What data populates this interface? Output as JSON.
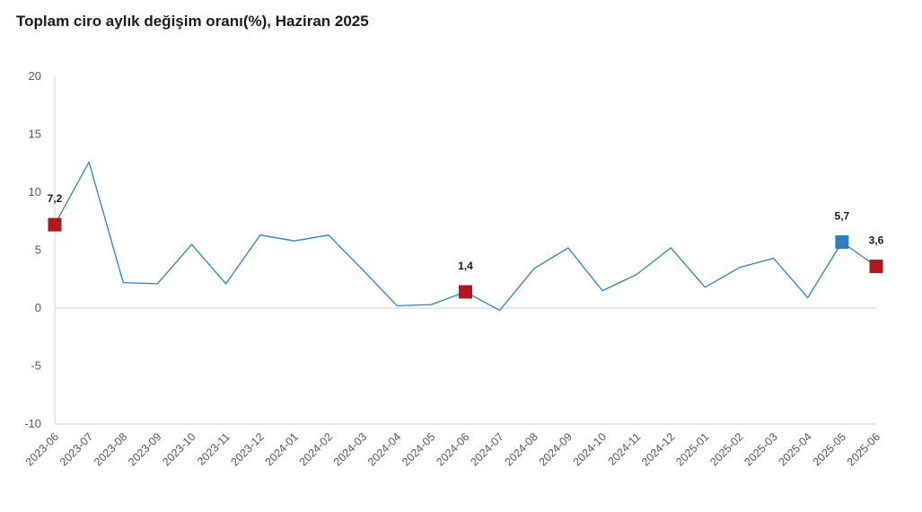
{
  "colors": {
    "line": "#2e7fc0",
    "marker_red": "#b0171f",
    "marker_blue": "#2e7fc0",
    "zero_line": "#d0d0d0",
    "axis": "#cfcfcf"
  },
  "chart_data": {
    "type": "line",
    "title": "Toplam ciro aylık değişim oranı(%), Haziran 2025",
    "xlabel": "",
    "ylabel": "",
    "ylim": [
      -10,
      20
    ],
    "yticks": [
      20,
      15,
      10,
      5,
      0,
      -5,
      -10
    ],
    "ytick_labels": [
      "20",
      "15",
      "10",
      "5",
      "0",
      "-5",
      "-10"
    ],
    "grid": false,
    "categories": [
      "2023-06",
      "2023-07",
      "2023-08",
      "2023-09",
      "2023-10",
      "2023-11",
      "2023-12",
      "2024-01",
      "2024-02",
      "2024-03",
      "2024-04",
      "2024-05",
      "2024-06",
      "2024-07",
      "2024-08",
      "2024-09",
      "2024-10",
      "2024-11",
      "2024-12",
      "2025-01",
      "2025-02",
      "2025-03",
      "2025-04",
      "2025-05",
      "2025-06"
    ],
    "series": [
      {
        "values": [
          7.2,
          12.6,
          2.2,
          2.1,
          5.5,
          2.1,
          6.3,
          5.8,
          6.3,
          3.3,
          0.2,
          0.3,
          1.4,
          -0.2,
          3.4,
          5.2,
          1.5,
          2.9,
          5.2,
          1.8,
          3.5,
          4.3,
          0.9,
          5.7,
          3.6
        ]
      }
    ],
    "highlighted_points": [
      {
        "category": "2023-06",
        "value": 7.2,
        "label": "7,2",
        "color": "red"
      },
      {
        "category": "2024-06",
        "value": 1.4,
        "label": "1,4",
        "color": "red"
      },
      {
        "category": "2025-05",
        "value": 5.7,
        "label": "5,7",
        "color": "blue"
      },
      {
        "category": "2025-06",
        "value": 3.6,
        "label": "3,6",
        "color": "red"
      }
    ]
  }
}
